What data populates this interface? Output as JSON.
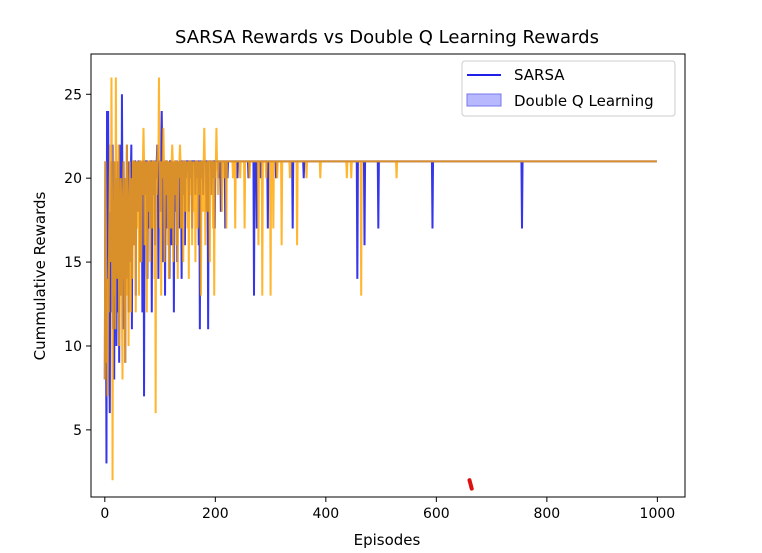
{
  "chart_data": {
    "type": "line",
    "title": "SARSA Rewards vs Double Q Learning Rewards",
    "xlabel": "Episodes",
    "ylabel": "Cummulative Rewards",
    "xlim": [
      -25,
      1050
    ],
    "ylim": [
      1.0,
      27.4
    ],
    "x_ticks": [
      0,
      200,
      400,
      600,
      800,
      1000
    ],
    "x_tick_labels": [
      "0",
      "200",
      "400",
      "600",
      "800",
      "1000"
    ],
    "y_ticks": [
      5,
      10,
      15,
      20,
      25
    ],
    "y_tick_labels": [
      "5",
      "10",
      "15",
      "20",
      "25"
    ],
    "grid": false,
    "legend_position": "top-right",
    "series": [
      {
        "name": "SARSA",
        "color": "#1f1fe8",
        "baseline": 21,
        "episodes": 1000,
        "spikes": [
          [
            0,
            8
          ],
          [
            2,
            14
          ],
          [
            3,
            3
          ],
          [
            4,
            24
          ],
          [
            5,
            19
          ],
          [
            6,
            24
          ],
          [
            7,
            17
          ],
          [
            8,
            10
          ],
          [
            9,
            6
          ],
          [
            10,
            18
          ],
          [
            11,
            12
          ],
          [
            12,
            21
          ],
          [
            13,
            16
          ],
          [
            14,
            22
          ],
          [
            15,
            11
          ],
          [
            16,
            19
          ],
          [
            17,
            8
          ],
          [
            18,
            21
          ],
          [
            19,
            14
          ],
          [
            20,
            20
          ],
          [
            21,
            10
          ],
          [
            22,
            17
          ],
          [
            23,
            21
          ],
          [
            24,
            12
          ],
          [
            25,
            19
          ],
          [
            26,
            9
          ],
          [
            27,
            22
          ],
          [
            28,
            15
          ],
          [
            29,
            20
          ],
          [
            30,
            13
          ],
          [
            31,
            25
          ],
          [
            32,
            18
          ],
          [
            33,
            11
          ],
          [
            34,
            21
          ],
          [
            35,
            16
          ],
          [
            36,
            20
          ],
          [
            37,
            9
          ],
          [
            38,
            19
          ],
          [
            39,
            14
          ],
          [
            40,
            22
          ],
          [
            41,
            17
          ],
          [
            42,
            20
          ],
          [
            43,
            12
          ],
          [
            44,
            21
          ],
          [
            45,
            18
          ],
          [
            46,
            15
          ],
          [
            47,
            20
          ],
          [
            48,
            22
          ],
          [
            49,
            11
          ],
          [
            50,
            19
          ],
          [
            52,
            16
          ],
          [
            54,
            21
          ],
          [
            56,
            13
          ],
          [
            58,
            20
          ],
          [
            60,
            18
          ],
          [
            62,
            21
          ],
          [
            64,
            15
          ],
          [
            66,
            20
          ],
          [
            68,
            12
          ],
          [
            70,
            21
          ],
          [
            71,
            7
          ],
          [
            73,
            19
          ],
          [
            75,
            21
          ],
          [
            77,
            14
          ],
          [
            79,
            20
          ],
          [
            81,
            17
          ],
          [
            83,
            21
          ],
          [
            85,
            12
          ],
          [
            87,
            19
          ],
          [
            89,
            21
          ],
          [
            91,
            16
          ],
          [
            93,
            20
          ],
          [
            95,
            22
          ],
          [
            97,
            14
          ],
          [
            99,
            21
          ],
          [
            101,
            18
          ],
          [
            103,
            24
          ],
          [
            105,
            15
          ],
          [
            107,
            20
          ],
          [
            109,
            13
          ],
          [
            111,
            21
          ],
          [
            113,
            17
          ],
          [
            115,
            19
          ],
          [
            117,
            14
          ],
          [
            119,
            21
          ],
          [
            121,
            16
          ],
          [
            123,
            20
          ],
          [
            125,
            12
          ],
          [
            127,
            18
          ],
          [
            129,
            21
          ],
          [
            131,
            15
          ],
          [
            133,
            20
          ],
          [
            135,
            17
          ],
          [
            137,
            21
          ],
          [
            139,
            14
          ],
          [
            141,
            19
          ],
          [
            143,
            21
          ],
          [
            145,
            16
          ],
          [
            147,
            20
          ],
          [
            150,
            21
          ],
          [
            152,
            18
          ],
          [
            155,
            20
          ],
          [
            158,
            17
          ],
          [
            161,
            21
          ],
          [
            164,
            19
          ],
          [
            167,
            20
          ],
          [
            170,
            16
          ],
          [
            172,
            11
          ],
          [
            175,
            20
          ],
          [
            178,
            19
          ],
          [
            181,
            21
          ],
          [
            184,
            18
          ],
          [
            187,
            11
          ],
          [
            190,
            21
          ],
          [
            193,
            19
          ],
          [
            196,
            20
          ],
          [
            199,
            17
          ],
          [
            202,
            21
          ],
          [
            206,
            20
          ],
          [
            210,
            18
          ],
          [
            214,
            21
          ],
          [
            218,
            17
          ],
          [
            222,
            20
          ],
          [
            230,
            21
          ],
          [
            240,
            20
          ],
          [
            250,
            21
          ],
          [
            260,
            20
          ],
          [
            270,
            13
          ],
          [
            275,
            17
          ],
          [
            282,
            20
          ],
          [
            295,
            17
          ],
          [
            310,
            20
          ],
          [
            325,
            21
          ],
          [
            340,
            17
          ],
          [
            360,
            20
          ],
          [
            400,
            21
          ],
          [
            457,
            14
          ],
          [
            470,
            16
          ],
          [
            495,
            17
          ],
          [
            593,
            17
          ],
          [
            755,
            17
          ]
        ]
      },
      {
        "name": "Double Q Learning",
        "color": "#ffa500",
        "baseline": 21,
        "episodes": 1000,
        "spikes": [
          [
            0,
            8
          ],
          [
            2,
            17
          ],
          [
            3,
            9
          ],
          [
            4,
            12
          ],
          [
            5,
            7
          ],
          [
            6,
            14
          ],
          [
            7,
            12
          ],
          [
            8,
            17
          ],
          [
            9,
            20
          ],
          [
            10,
            22
          ],
          [
            11,
            15
          ],
          [
            12,
            26
          ],
          [
            13,
            19
          ],
          [
            14,
            2
          ],
          [
            15,
            16
          ],
          [
            16,
            13
          ],
          [
            17,
            21
          ],
          [
            18,
            17
          ],
          [
            19,
            11
          ],
          [
            20,
            26
          ],
          [
            21,
            18
          ],
          [
            22,
            21
          ],
          [
            23,
            14
          ],
          [
            24,
            17
          ],
          [
            25,
            22
          ],
          [
            26,
            10
          ],
          [
            27,
            16
          ],
          [
            28,
            13
          ],
          [
            29,
            20
          ],
          [
            30,
            17
          ],
          [
            31,
            12
          ],
          [
            32,
            8
          ],
          [
            33,
            19
          ],
          [
            34,
            21
          ],
          [
            35,
            14
          ],
          [
            36,
            17
          ],
          [
            37,
            9
          ],
          [
            38,
            20
          ],
          [
            39,
            16
          ],
          [
            40,
            22
          ],
          [
            41,
            13
          ],
          [
            42,
            18
          ],
          [
            43,
            10
          ],
          [
            44,
            19
          ],
          [
            45,
            21
          ],
          [
            46,
            15
          ],
          [
            47,
            12
          ],
          [
            48,
            20
          ],
          [
            49,
            17
          ],
          [
            50,
            14
          ],
          [
            52,
            21
          ],
          [
            54,
            16
          ],
          [
            56,
            12
          ],
          [
            58,
            20
          ],
          [
            60,
            17
          ],
          [
            62,
            13
          ],
          [
            64,
            21
          ],
          [
            66,
            15
          ],
          [
            68,
            19
          ],
          [
            70,
            23
          ],
          [
            72,
            16
          ],
          [
            74,
            20
          ],
          [
            76,
            12
          ],
          [
            78,
            18
          ],
          [
            80,
            21
          ],
          [
            82,
            15
          ],
          [
            84,
            20
          ],
          [
            86,
            17
          ],
          [
            88,
            21
          ],
          [
            90,
            14
          ],
          [
            92,
            6
          ],
          [
            94,
            19
          ],
          [
            96,
            22
          ],
          [
            98,
            26
          ],
          [
            100,
            17
          ],
          [
            102,
            13
          ],
          [
            104,
            20
          ],
          [
            106,
            23
          ],
          [
            108,
            15
          ],
          [
            110,
            19
          ],
          [
            112,
            21
          ],
          [
            114,
            16
          ],
          [
            116,
            14
          ],
          [
            118,
            20
          ],
          [
            120,
            17
          ],
          [
            122,
            22
          ],
          [
            124,
            15
          ],
          [
            126,
            19
          ],
          [
            128,
            21
          ],
          [
            130,
            16
          ],
          [
            132,
            14
          ],
          [
            134,
            20
          ],
          [
            136,
            22
          ],
          [
            138,
            17
          ],
          [
            140,
            19
          ],
          [
            142,
            15
          ],
          [
            144,
            21
          ],
          [
            146,
            18
          ],
          [
            148,
            20
          ],
          [
            150,
            17
          ],
          [
            152,
            14
          ],
          [
            154,
            21
          ],
          [
            156,
            19
          ],
          [
            158,
            16
          ],
          [
            160,
            20
          ],
          [
            162,
            18
          ],
          [
            164,
            15
          ],
          [
            166,
            21
          ],
          [
            168,
            17
          ],
          [
            170,
            20
          ],
          [
            172,
            19
          ],
          [
            174,
            13
          ],
          [
            176,
            21
          ],
          [
            178,
            18
          ],
          [
            180,
            23
          ],
          [
            182,
            16
          ],
          [
            184,
            20
          ],
          [
            186,
            18
          ],
          [
            188,
            21
          ],
          [
            190,
            15
          ],
          [
            192,
            19
          ],
          [
            194,
            21
          ],
          [
            196,
            17
          ],
          [
            198,
            13
          ],
          [
            200,
            20
          ],
          [
            202,
            23
          ],
          [
            205,
            19
          ],
          [
            208,
            21
          ],
          [
            212,
            18
          ],
          [
            216,
            20
          ],
          [
            220,
            17
          ],
          [
            226,
            21
          ],
          [
            232,
            20
          ],
          [
            236,
            17
          ],
          [
            245,
            20
          ],
          [
            253,
            17
          ],
          [
            262,
            20
          ],
          [
            270,
            21
          ],
          [
            278,
            16
          ],
          [
            285,
            13
          ],
          [
            292,
            20
          ],
          [
            300,
            13
          ],
          [
            305,
            17
          ],
          [
            312,
            20
          ],
          [
            320,
            16
          ],
          [
            335,
            20
          ],
          [
            348,
            16
          ],
          [
            365,
            20
          ],
          [
            390,
            20
          ],
          [
            438,
            20
          ],
          [
            446,
            20
          ],
          [
            464,
            13
          ],
          [
            528,
            20
          ]
        ]
      }
    ],
    "legend": [
      "SARSA",
      "Double Q Learning"
    ],
    "annotations": [
      {
        "type": "red-mark",
        "color": "#dd1111",
        "points": [
          [
            660,
            2.0
          ],
          [
            664,
            1.5
          ]
        ]
      }
    ]
  }
}
